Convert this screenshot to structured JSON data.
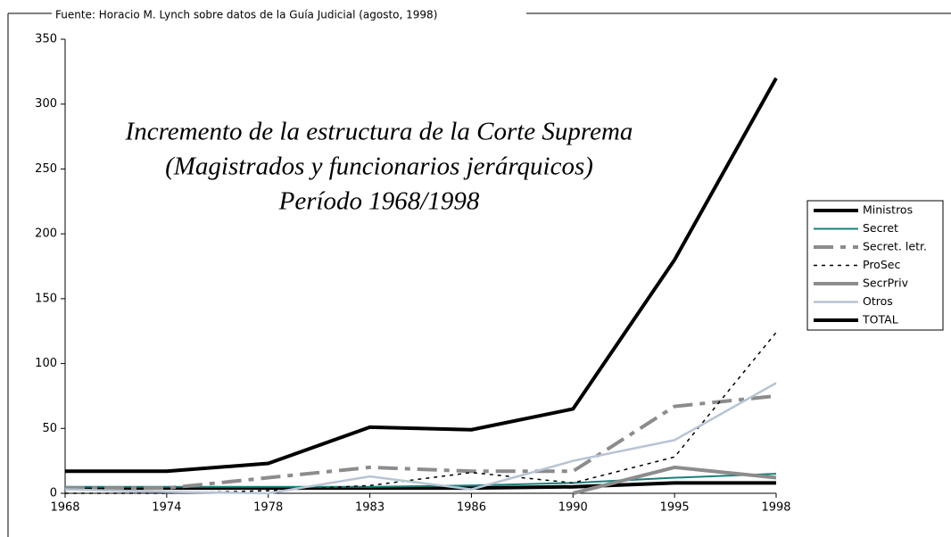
{
  "chart_data": {
    "type": "line",
    "source": "Fuente: Horacio M. Lynch sobre datos de la Guía Judicial (agosto, 1998)",
    "title_lines": [
      "Incremento de la estructura de la Corte Suprema",
      "(Magistrados y funcionarios jerárquicos)",
      "Período 1968/1998"
    ],
    "categories": [
      "1968",
      "1974",
      "1978",
      "1983",
      "1986",
      "1990",
      "1995",
      "1998"
    ],
    "ylim": [
      0,
      350
    ],
    "yticks": [
      0,
      50,
      100,
      150,
      200,
      250,
      300,
      350
    ],
    "legend": "right",
    "series": [
      {
        "name": "Ministros",
        "color": "#000000",
        "width": 4,
        "dash": "none",
        "values": [
          4,
          4,
          4,
          4,
          4,
          5,
          8,
          8
        ]
      },
      {
        "name": "Secret",
        "color": "#1a7f7a",
        "width": 2,
        "dash": "none",
        "values": [
          5,
          5,
          5,
          5,
          6,
          8,
          12,
          15
        ]
      },
      {
        "name": "Secret. letr.",
        "color": "#8c8c8c",
        "width": 4,
        "dash": "22 8 6 8",
        "values": [
          4,
          4,
          12,
          20,
          17,
          17,
          67,
          75
        ]
      },
      {
        "name": "ProSec",
        "color": "#000000",
        "width": 1.5,
        "dash": "4 5",
        "values": [
          0,
          0,
          2,
          6,
          16,
          8,
          28,
          124
        ]
      },
      {
        "name": "SecrPriv",
        "color": "#8c8c8c",
        "width": 4,
        "dash": "none",
        "values": [
          null,
          null,
          null,
          null,
          null,
          0,
          20,
          12
        ]
      },
      {
        "name": "Otros",
        "color": "#b8c4d4",
        "width": 2.5,
        "dash": "none",
        "values": [
          3,
          1,
          0,
          13,
          3,
          25,
          41,
          85
        ]
      },
      {
        "name": "TOTAL",
        "color": "#000000",
        "width": 4,
        "dash": "none",
        "values": [
          17,
          17,
          23,
          51,
          49,
          65,
          180,
          320
        ]
      }
    ]
  }
}
